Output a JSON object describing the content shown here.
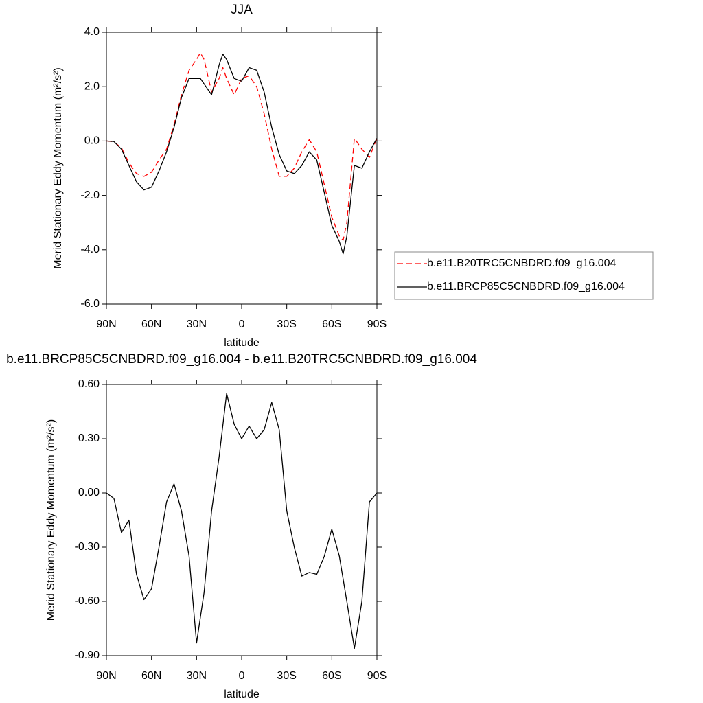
{
  "chart_data": [
    {
      "type": "line",
      "title": "JJA",
      "x_label": "latitude",
      "y_label": "Merid Stationary Eddy Momentum (m²/s²)",
      "x": [
        90,
        85,
        80,
        75,
        70,
        65,
        60,
        55,
        50,
        45,
        40,
        35,
        30,
        27.5,
        25,
        20,
        15,
        12.5,
        10,
        5,
        0,
        -5,
        -10,
        -15,
        -20,
        -25,
        -30,
        -35,
        -40,
        -45,
        -50,
        -55,
        -60,
        -65,
        -67.5,
        -70,
        -75,
        -80,
        -85,
        -90
      ],
      "series": [
        {
          "name": "b.e11.B20TRC5CNBDRD.f09_g16.004",
          "color": "#ff0000",
          "style": "dashed",
          "values": [
            0,
            -0.03,
            -0.25,
            -0.8,
            -1.2,
            -1.3,
            -1.15,
            -0.7,
            -0.3,
            0.6,
            1.7,
            2.6,
            3.0,
            3.25,
            3.0,
            1.8,
            2.3,
            2.7,
            2.3,
            1.7,
            2.3,
            2.4,
            2.0,
            1.0,
            -0.3,
            -1.3,
            -1.3,
            -1.0,
            -0.4,
            0.05,
            -0.4,
            -1.6,
            -2.8,
            -3.5,
            -3.65,
            -3.0,
            0.1,
            -0.3,
            -0.6,
            0.1
          ]
        },
        {
          "name": "b.e11.BRCP85C5CNBDRD.f09_g16.004",
          "color": "#000000",
          "style": "solid",
          "values": [
            0,
            -0.02,
            -0.3,
            -0.9,
            -1.5,
            -1.8,
            -1.7,
            -1.1,
            -0.4,
            0.5,
            1.6,
            2.3,
            2.3,
            2.3,
            2.1,
            1.7,
            2.8,
            3.2,
            3.0,
            2.3,
            2.2,
            2.7,
            2.6,
            1.8,
            0.5,
            -0.5,
            -1.1,
            -1.2,
            -0.9,
            -0.4,
            -0.7,
            -1.9,
            -3.1,
            -3.7,
            -4.15,
            -3.5,
            -0.9,
            -1.0,
            -0.4,
            0.1
          ]
        }
      ],
      "xlim": [
        90,
        -90
      ],
      "xticks": [
        {
          "value": 90,
          "label": "90N"
        },
        {
          "value": 60,
          "label": "60N"
        },
        {
          "value": 30,
          "label": "30N"
        },
        0,
        {
          "value": -30,
          "label": "30S"
        },
        {
          "value": -60,
          "label": "60S"
        },
        {
          "value": -90,
          "label": "90S"
        }
      ],
      "ylim": [
        -6,
        4
      ],
      "yticks": [
        {
          "value": -6,
          "label": "-6.0"
        },
        {
          "value": -4,
          "label": "-4.0"
        },
        {
          "value": -2,
          "label": "-2.0"
        },
        {
          "value": 0,
          "label": "0.0"
        },
        {
          "value": 2,
          "label": "2.0"
        },
        {
          "value": 4,
          "label": "4.0"
        }
      ],
      "legend": "right"
    },
    {
      "type": "line",
      "title": "b.e11.BRCP85C5CNBDRD.f09_g16.004 - b.e11.B20TRC5CNBDRD.f09_g16.004",
      "x_label": "latitude",
      "y_label": "Merid Stationary Eddy Momentum (m²/s²)",
      "x": [
        90,
        85,
        80,
        75,
        70,
        65,
        60,
        55,
        50,
        45,
        40,
        35,
        30,
        25,
        20,
        15,
        10,
        5,
        0,
        -5,
        -10,
        -15,
        -20,
        -25,
        -30,
        -35,
        -40,
        -45,
        -50,
        -55,
        -60,
        -65,
        -70,
        -75,
        -80,
        -85,
        -90
      ],
      "values": [
        0,
        -0.03,
        -0.22,
        -0.15,
        -0.45,
        -0.59,
        -0.53,
        -0.3,
        -0.05,
        0.05,
        -0.1,
        -0.35,
        -0.83,
        -0.55,
        -0.1,
        0.2,
        0.55,
        0.38,
        0.3,
        0.37,
        0.3,
        0.35,
        0.5,
        0.35,
        -0.1,
        -0.3,
        -0.46,
        -0.44,
        -0.45,
        -0.35,
        -0.2,
        -0.35,
        -0.6,
        -0.86,
        -0.6,
        -0.05,
        0
      ],
      "color": "#000000",
      "xlim": [
        90,
        -90
      ],
      "xticks": [
        {
          "value": 90,
          "label": "90N"
        },
        {
          "value": 60,
          "label": "60N"
        },
        {
          "value": 30,
          "label": "30N"
        },
        0,
        {
          "value": -30,
          "label": "30S"
        },
        {
          "value": -60,
          "label": "60S"
        },
        {
          "value": -90,
          "label": "90S"
        }
      ],
      "ylim": [
        -0.9,
        0.6
      ],
      "yticks": [
        {
          "value": -0.9,
          "label": "-0.90"
        },
        {
          "value": -0.6,
          "label": "-0.60"
        },
        {
          "value": -0.3,
          "label": "-0.30"
        },
        {
          "value": 0,
          "label": "0.00"
        },
        {
          "value": 0.3,
          "label": "0.30"
        },
        {
          "value": 0.6,
          "label": "0.60"
        }
      ]
    }
  ]
}
